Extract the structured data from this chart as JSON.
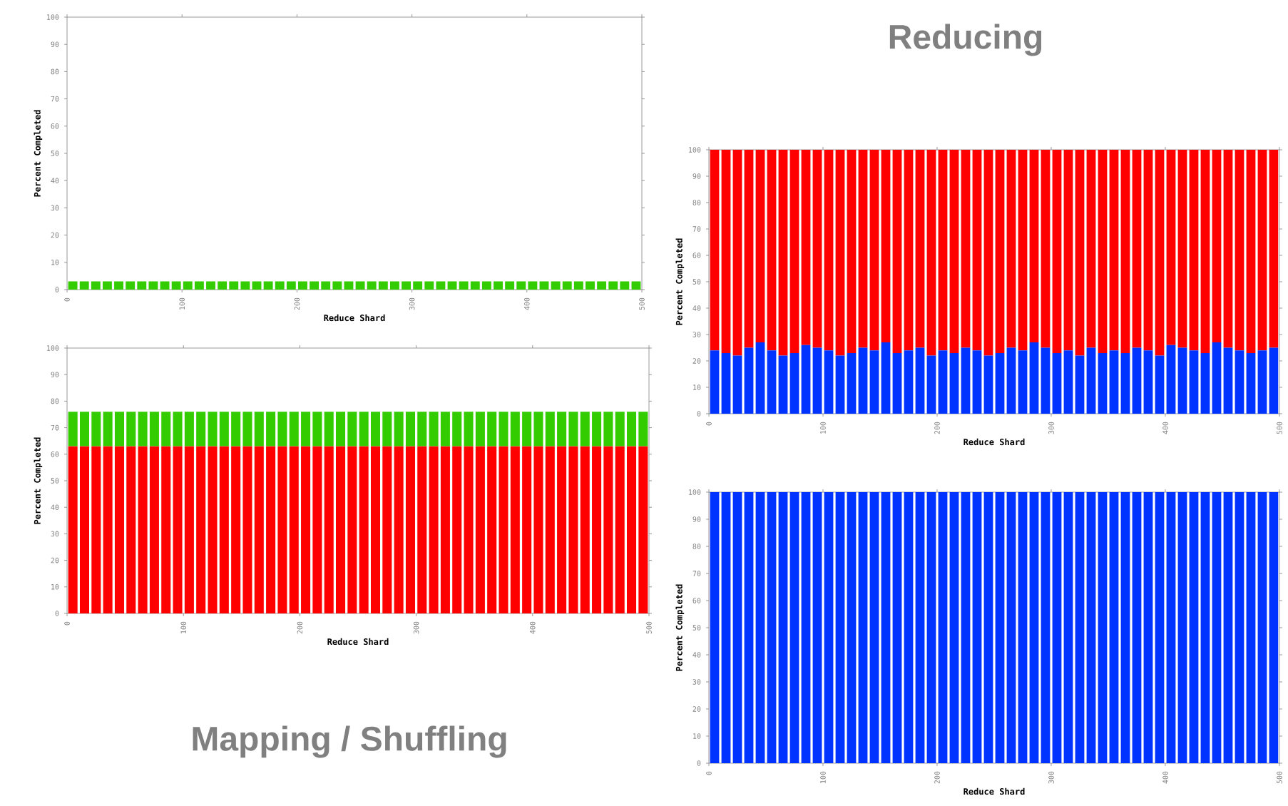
{
  "chart_data": [
    {
      "type": "bar",
      "stacked": true,
      "xlabel": "Reduce Shard",
      "ylabel": "Percent Completed",
      "x": [
        5,
        15,
        25,
        35,
        45,
        55,
        65,
        75,
        85,
        95,
        105,
        115,
        125,
        135,
        145,
        155,
        165,
        175,
        185,
        195,
        205,
        215,
        225,
        235,
        245,
        255,
        265,
        275,
        285,
        295,
        305,
        315,
        325,
        335,
        345,
        355,
        365,
        375,
        385,
        395,
        405,
        415,
        425,
        435,
        445,
        455,
        465,
        475,
        485,
        495
      ],
      "xlim": [
        0,
        500
      ],
      "ylim": [
        0,
        100
      ],
      "xticks": [
        0,
        100,
        200,
        300,
        400,
        500
      ],
      "yticks": [
        0,
        10,
        20,
        30,
        40,
        50,
        60,
        70,
        80,
        90,
        100
      ],
      "series": [
        {
          "color": "#33cc00",
          "values": [
            3,
            3,
            3,
            3,
            3,
            3,
            3,
            3,
            3,
            3,
            3,
            3,
            3,
            3,
            3,
            3,
            3,
            3,
            3,
            3,
            3,
            3,
            3,
            3,
            3,
            3,
            3,
            3,
            3,
            3,
            3,
            3,
            3,
            3,
            3,
            3,
            3,
            3,
            3,
            3,
            3,
            3,
            3,
            3,
            3,
            3,
            3,
            3,
            3,
            3
          ]
        }
      ]
    },
    {
      "type": "bar",
      "stacked": true,
      "xlabel": "Reduce Shard",
      "ylabel": "Percent Completed",
      "annotations": [
        "Mapping / Shuffling"
      ],
      "x": [
        5,
        15,
        25,
        35,
        45,
        55,
        65,
        75,
        85,
        95,
        105,
        115,
        125,
        135,
        145,
        155,
        165,
        175,
        185,
        195,
        205,
        215,
        225,
        235,
        245,
        255,
        265,
        275,
        285,
        295,
        305,
        315,
        325,
        335,
        345,
        355,
        365,
        375,
        385,
        395,
        405,
        415,
        425,
        435,
        445,
        455,
        465,
        475,
        485,
        495
      ],
      "xlim": [
        0,
        500
      ],
      "ylim": [
        0,
        100
      ],
      "xticks": [
        0,
        100,
        200,
        300,
        400,
        500
      ],
      "yticks": [
        0,
        10,
        20,
        30,
        40,
        50,
        60,
        70,
        80,
        90,
        100
      ],
      "series": [
        {
          "color": "#ff0000",
          "values": [
            63,
            63,
            63,
            63,
            63,
            63,
            63,
            63,
            63,
            63,
            63,
            63,
            63,
            63,
            63,
            63,
            63,
            63,
            63,
            63,
            63,
            63,
            63,
            63,
            63,
            63,
            63,
            63,
            63,
            63,
            63,
            63,
            63,
            63,
            63,
            63,
            63,
            63,
            63,
            63,
            63,
            63,
            63,
            63,
            63,
            63,
            63,
            63,
            63,
            63
          ]
        },
        {
          "color": "#33cc00",
          "values": [
            13,
            13,
            13,
            13,
            13,
            13,
            13,
            13,
            13,
            13,
            13,
            13,
            13,
            13,
            13,
            13,
            13,
            13,
            13,
            13,
            13,
            13,
            13,
            13,
            13,
            13,
            13,
            13,
            13,
            13,
            13,
            13,
            13,
            13,
            13,
            13,
            13,
            13,
            13,
            13,
            13,
            13,
            13,
            13,
            13,
            13,
            13,
            13,
            13,
            13
          ]
        }
      ]
    },
    {
      "type": "bar",
      "stacked": true,
      "title": "Reducing",
      "xlabel": "Reduce Shard",
      "ylabel": "Percent Completed",
      "x": [
        5,
        15,
        25,
        35,
        45,
        55,
        65,
        75,
        85,
        95,
        105,
        115,
        125,
        135,
        145,
        155,
        165,
        175,
        185,
        195,
        205,
        215,
        225,
        235,
        245,
        255,
        265,
        275,
        285,
        295,
        305,
        315,
        325,
        335,
        345,
        355,
        365,
        375,
        385,
        395,
        405,
        415,
        425,
        435,
        445,
        455,
        465,
        475,
        485,
        495
      ],
      "xlim": [
        0,
        500
      ],
      "ylim": [
        0,
        100
      ],
      "xticks": [
        0,
        100,
        200,
        300,
        400,
        500
      ],
      "yticks": [
        0,
        10,
        20,
        30,
        40,
        50,
        60,
        70,
        80,
        90,
        100
      ],
      "series": [
        {
          "color": "#0033ff",
          "values": [
            24,
            23,
            22,
            25,
            27,
            24,
            22,
            23,
            26,
            25,
            24,
            22,
            23,
            25,
            24,
            27,
            23,
            24,
            25,
            22,
            24,
            23,
            25,
            24,
            22,
            23,
            25,
            24,
            27,
            25,
            23,
            24,
            22,
            25,
            23,
            24,
            23,
            25,
            24,
            22,
            26,
            25,
            24,
            23,
            27,
            25,
            24,
            23,
            24,
            25
          ]
        },
        {
          "color": "#ff0000",
          "values": [
            76,
            77,
            78,
            75,
            73,
            76,
            78,
            77,
            74,
            75,
            76,
            78,
            77,
            75,
            76,
            73,
            77,
            76,
            75,
            78,
            76,
            77,
            75,
            76,
            78,
            77,
            75,
            76,
            73,
            75,
            77,
            76,
            78,
            75,
            77,
            76,
            77,
            75,
            76,
            78,
            74,
            75,
            76,
            77,
            73,
            75,
            76,
            77,
            76,
            75
          ]
        }
      ]
    },
    {
      "type": "bar",
      "stacked": true,
      "xlabel": "Reduce Shard",
      "ylabel": "Percent Completed",
      "x": [
        5,
        15,
        25,
        35,
        45,
        55,
        65,
        75,
        85,
        95,
        105,
        115,
        125,
        135,
        145,
        155,
        165,
        175,
        185,
        195,
        205,
        215,
        225,
        235,
        245,
        255,
        265,
        275,
        285,
        295,
        305,
        315,
        325,
        335,
        345,
        355,
        365,
        375,
        385,
        395,
        405,
        415,
        425,
        435,
        445,
        455,
        465,
        475,
        485,
        495
      ],
      "xlim": [
        0,
        500
      ],
      "ylim": [
        0,
        100
      ],
      "xticks": [
        0,
        100,
        200,
        300,
        400,
        500
      ],
      "yticks": [
        0,
        10,
        20,
        30,
        40,
        50,
        60,
        70,
        80,
        90,
        100
      ],
      "series": [
        {
          "color": "#0033ff",
          "values": [
            100,
            100,
            100,
            100,
            100,
            100,
            100,
            100,
            100,
            100,
            100,
            100,
            100,
            100,
            100,
            100,
            100,
            100,
            100,
            100,
            100,
            100,
            100,
            100,
            100,
            100,
            100,
            100,
            100,
            100,
            100,
            100,
            100,
            100,
            100,
            100,
            100,
            100,
            100,
            100,
            100,
            100,
            100,
            100,
            100,
            100,
            100,
            100,
            100,
            100
          ]
        }
      ]
    }
  ]
}
